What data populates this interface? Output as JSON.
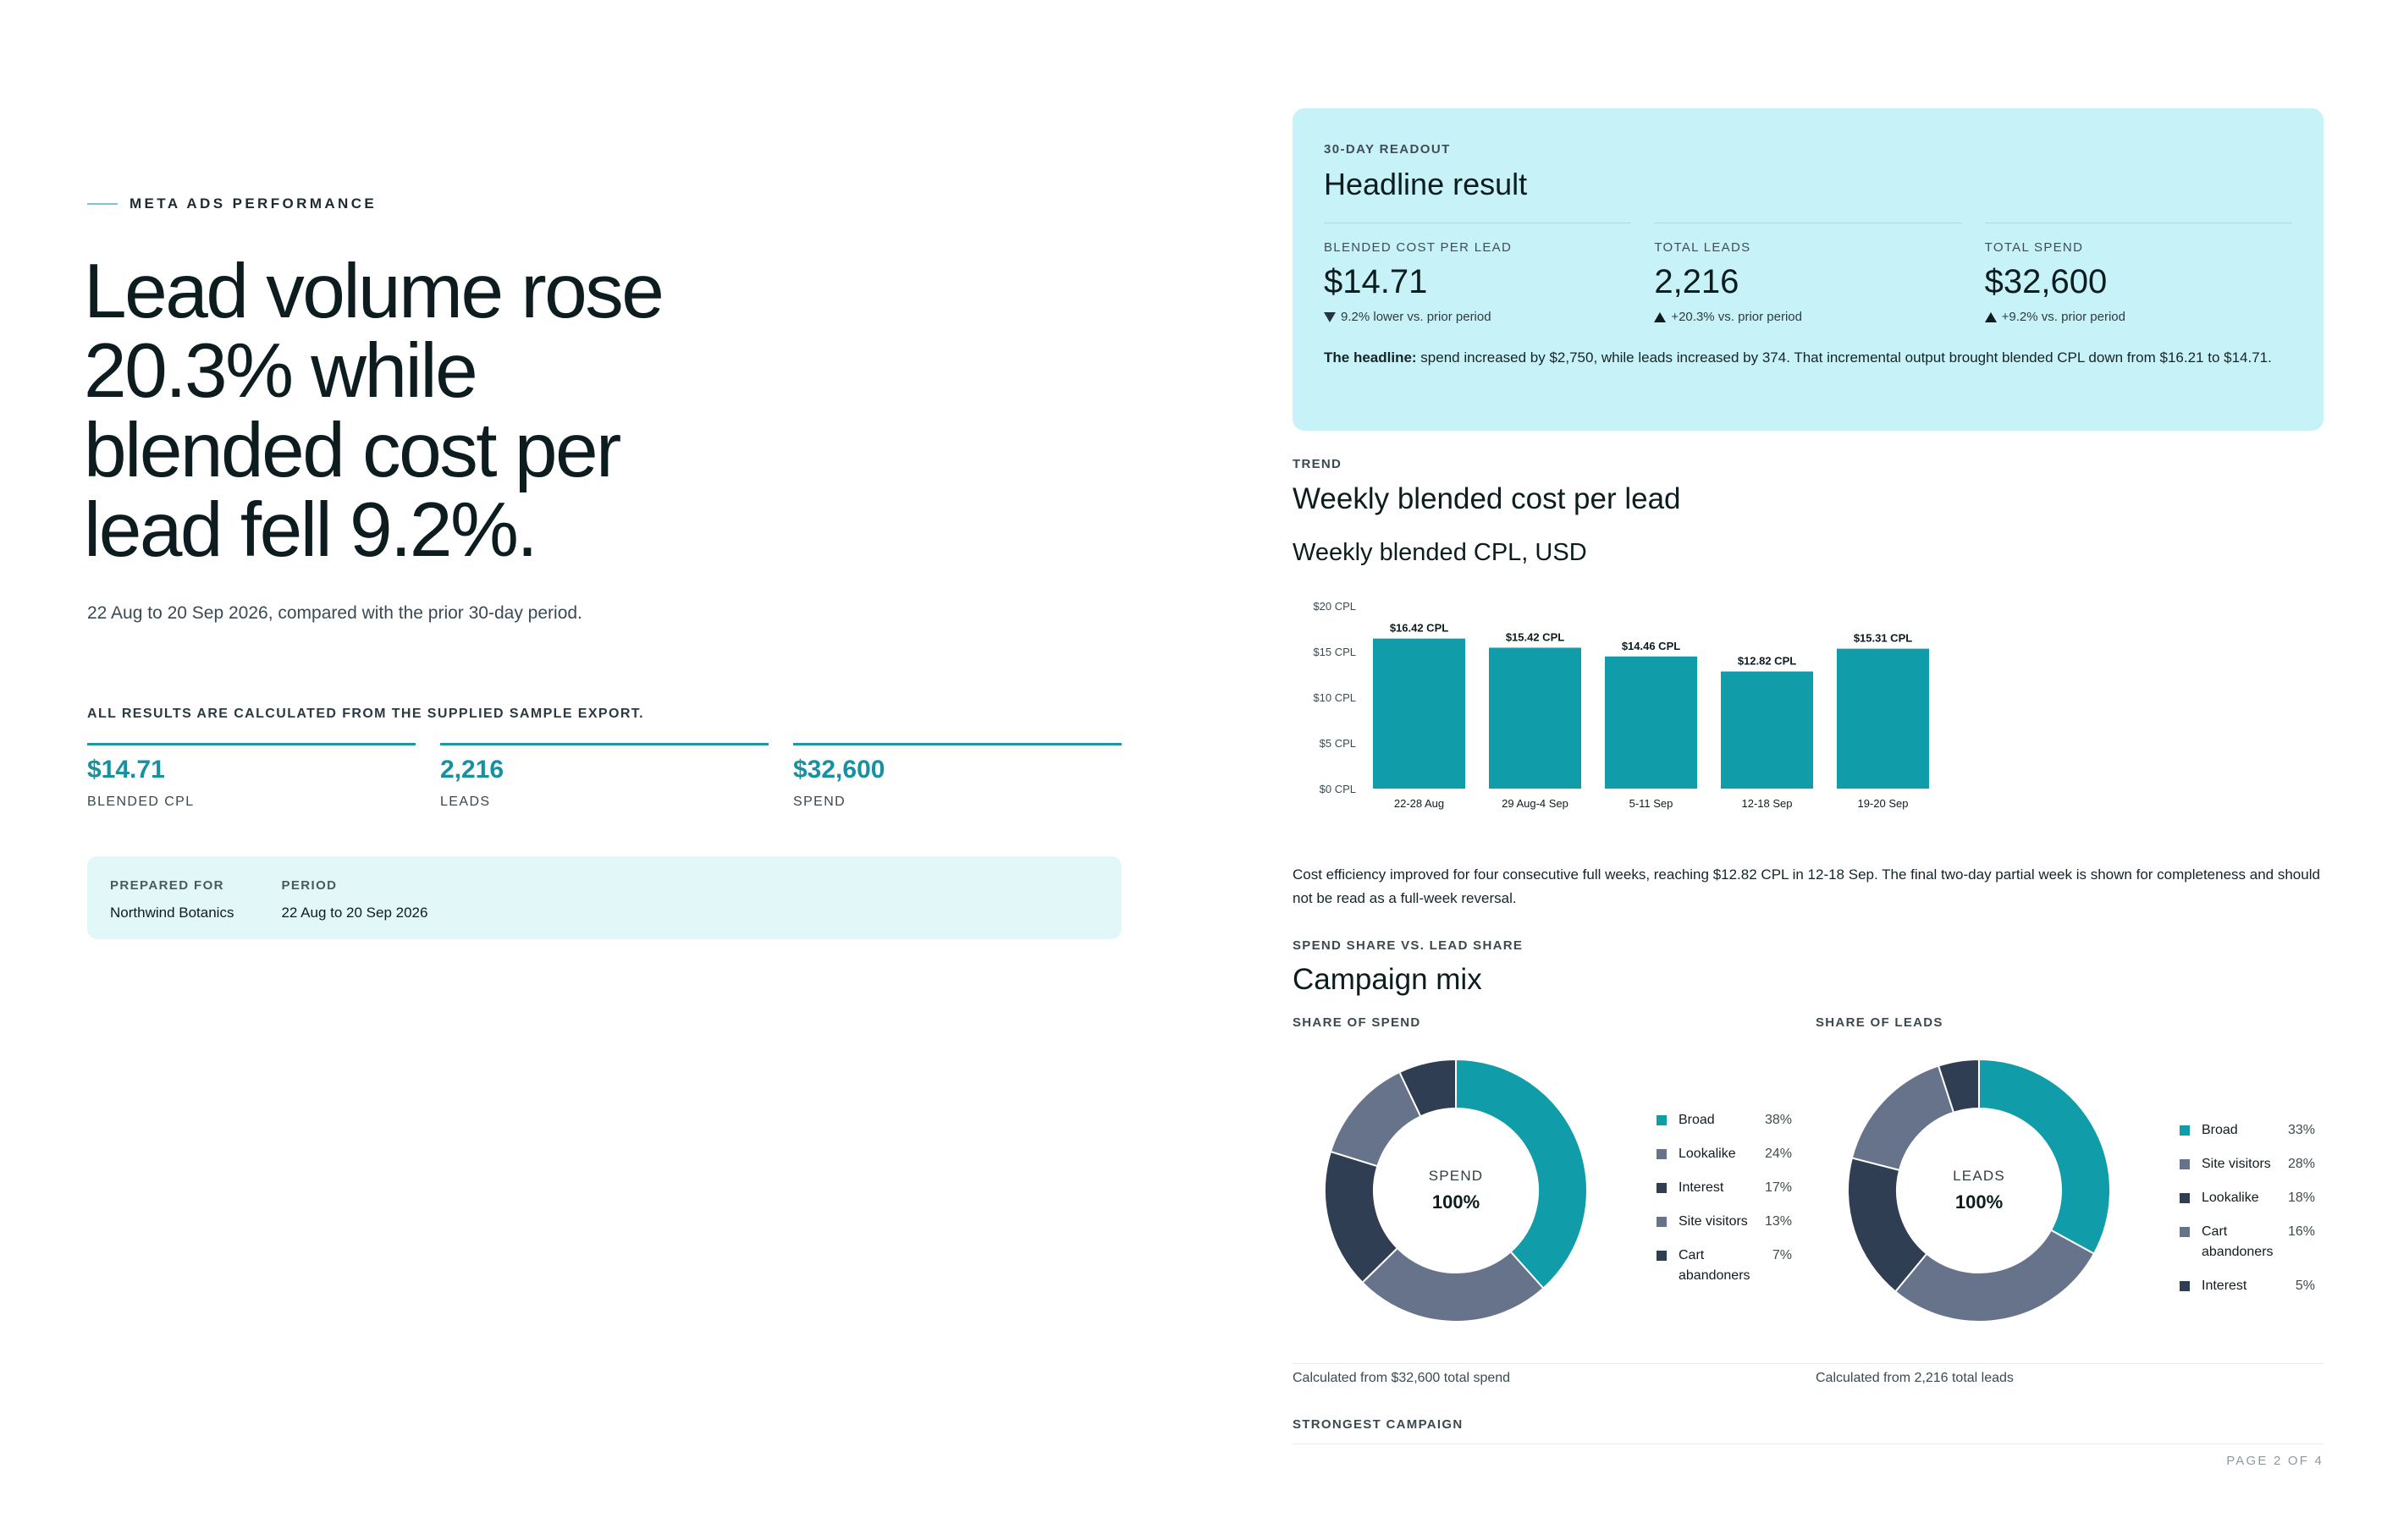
{
  "left": {
    "eyebrow": "META ADS PERFORMANCE",
    "headline_lines": [
      "Lead volume rose",
      "20.3% while",
      "blended cost per",
      "lead fell 9.2%."
    ],
    "period_text": "22 Aug to 20 Sep 2026, compared with the prior 30-day period.",
    "calc_note": "ALL RESULTS ARE CALCULATED FROM THE SUPPLIED SAMPLE EXPORT.",
    "kpis": [
      {
        "value": "$14.71",
        "label": "BLENDED CPL"
      },
      {
        "value": "2,216",
        "label": "LEADS"
      },
      {
        "value": "$32,600",
        "label": "SPEND"
      }
    ],
    "prepared": {
      "prepared_label": "PREPARED FOR",
      "prepared_value": "Northwind Botanics",
      "period_label": "PERIOD",
      "period_value": "22 Aug to 20 Sep 2026"
    }
  },
  "readout": {
    "eyebrow": "30-DAY READOUT",
    "title": "Headline result",
    "stats": [
      {
        "label": "BLENDED COST PER LEAD",
        "value": "$14.71",
        "delta": "9.2% lower vs. prior period",
        "dir": "down"
      },
      {
        "label": "TOTAL LEADS",
        "value": "2,216",
        "delta": "+20.3% vs. prior period",
        "dir": "up"
      },
      {
        "label": "TOTAL SPEND",
        "value": "$32,600",
        "delta": "+9.2% vs. prior period",
        "dir": "up"
      }
    ],
    "note_bold": "The headline:",
    "note_text": " spend increased by $2,750, while leads increased by 374. That incremental output brought blended CPL down from $16.21 to $14.71."
  },
  "trend": {
    "eyebrow": "TREND",
    "title": "Weekly blended cost per lead",
    "chart_title": "Weekly blended CPL, USD",
    "commentary": "Cost efficiency improved for four consecutive full weeks, reaching $12.82 CPL in 12-18 Sep. The final two-day partial week is shown for completeness and should not be read as a full-week reversal."
  },
  "mix": {
    "eyebrow": "SPEND SHARE VS. LEAD SHARE",
    "title": "Campaign mix",
    "spend": {
      "caption": "SHARE OF SPEND",
      "center_label": "SPEND",
      "center_value": "100%",
      "footer": "Calculated from $32,600 total spend",
      "items": [
        {
          "name": "Broad",
          "pct": "38%",
          "value": 38,
          "color": "#109ca9"
        },
        {
          "name": "Lookalike",
          "pct": "24%",
          "value": 24,
          "color": "#66738a"
        },
        {
          "name": "Interest",
          "pct": "17%",
          "value": 17,
          "color": "#2f3e52"
        },
        {
          "name": "Site visitors",
          "pct": "13%",
          "value": 13,
          "color": "#66738a"
        },
        {
          "name": "Cart abandoners",
          "pct": "7%",
          "value": 7,
          "color": "#2f3e52"
        }
      ]
    },
    "leads": {
      "caption": "SHARE OF LEADS",
      "center_label": "LEADS",
      "center_value": "100%",
      "footer": "Calculated from 2,216 total leads",
      "items": [
        {
          "name": "Broad",
          "pct": "33%",
          "value": 33,
          "color": "#109ca9"
        },
        {
          "name": "Site visitors",
          "pct": "28%",
          "value": 28,
          "color": "#66738a"
        },
        {
          "name": "Lookalike",
          "pct": "18%",
          "value": 18,
          "color": "#2f3e52"
        },
        {
          "name": "Cart abandoners",
          "pct": "16%",
          "value": 16,
          "color": "#66738a"
        },
        {
          "name": "Interest",
          "pct": "5%",
          "value": 5,
          "color": "#2f3e52"
        }
      ]
    },
    "next_eyebrow": "STRONGEST CAMPAIGN"
  },
  "page_number": "PAGE 2 OF 4",
  "chart_data": {
    "type": "bar",
    "title": "Weekly blended CPL, USD",
    "categories": [
      "22-28 Aug",
      "29 Aug-4 Sep",
      "5-11 Sep",
      "12-18 Sep",
      "19-20 Sep"
    ],
    "values": [
      16.42,
      15.42,
      14.46,
      12.82,
      15.31
    ],
    "data_labels": [
      "$16.42 CPL",
      "$15.42 CPL",
      "$14.46 CPL",
      "$12.82 CPL",
      "$15.31 CPL"
    ],
    "y_ticks": [
      "$0 CPL",
      "$5 CPL",
      "$10 CPL",
      "$15 CPL",
      "$20 CPL"
    ],
    "ylim": [
      0,
      20
    ],
    "bar_color": "#109ca9",
    "grid": false
  }
}
